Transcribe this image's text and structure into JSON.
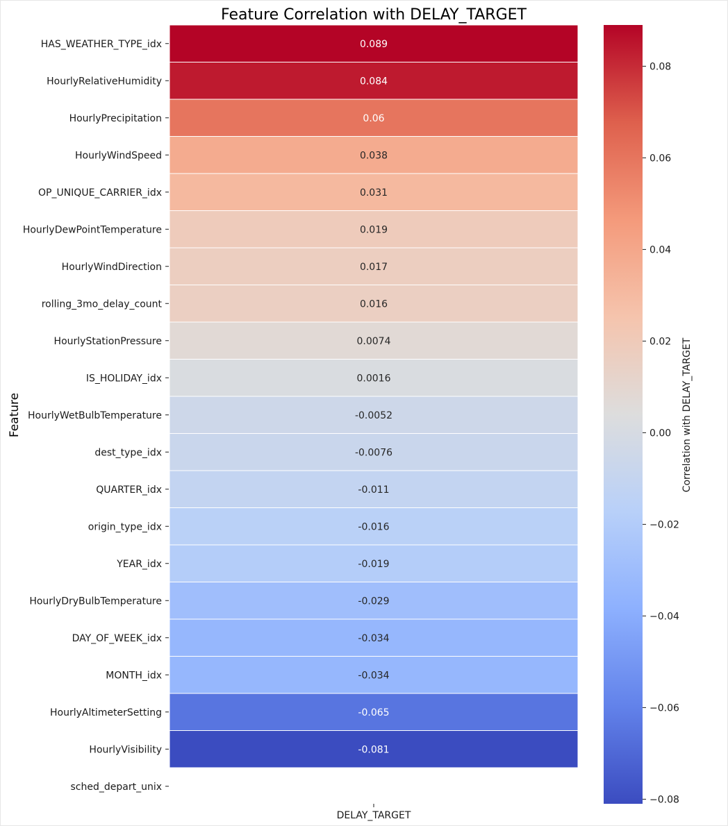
{
  "chart_data": {
    "type": "heatmap",
    "title": "Feature Correlation with DELAY_TARGET",
    "ylabel": "Feature",
    "xlabel": "",
    "columns": [
      "DELAY_TARGET"
    ],
    "rows": [
      {
        "label": "HAS_WEATHER_TYPE_idx",
        "value": 0.089,
        "text": "0.089"
      },
      {
        "label": "HourlyRelativeHumidity",
        "value": 0.084,
        "text": "0.084"
      },
      {
        "label": "HourlyPrecipitation",
        "value": 0.06,
        "text": "0.06"
      },
      {
        "label": "HourlyWindSpeed",
        "value": 0.038,
        "text": "0.038"
      },
      {
        "label": "OP_UNIQUE_CARRIER_idx",
        "value": 0.031,
        "text": "0.031"
      },
      {
        "label": "HourlyDewPointTemperature",
        "value": 0.019,
        "text": "0.019"
      },
      {
        "label": "HourlyWindDirection",
        "value": 0.017,
        "text": "0.017"
      },
      {
        "label": "rolling_3mo_delay_count",
        "value": 0.016,
        "text": "0.016"
      },
      {
        "label": "HourlyStationPressure",
        "value": 0.0074,
        "text": "0.0074"
      },
      {
        "label": "IS_HOLIDAY_idx",
        "value": 0.0016,
        "text": "0.0016"
      },
      {
        "label": "HourlyWetBulbTemperature",
        "value": -0.0052,
        "text": "-0.0052"
      },
      {
        "label": "dest_type_idx",
        "value": -0.0076,
        "text": "-0.0076"
      },
      {
        "label": "QUARTER_idx",
        "value": -0.011,
        "text": "-0.011"
      },
      {
        "label": "origin_type_idx",
        "value": -0.016,
        "text": "-0.016"
      },
      {
        "label": "YEAR_idx",
        "value": -0.019,
        "text": "-0.019"
      },
      {
        "label": "HourlyDryBulbTemperature",
        "value": -0.029,
        "text": "-0.029"
      },
      {
        "label": "DAY_OF_WEEK_idx",
        "value": -0.034,
        "text": "-0.034"
      },
      {
        "label": "MONTH_idx",
        "value": -0.034,
        "text": "-0.034"
      },
      {
        "label": "HourlyAltimeterSetting",
        "value": -0.065,
        "text": "-0.065"
      },
      {
        "label": "HourlyVisibility",
        "value": -0.081,
        "text": "-0.081"
      },
      {
        "label": "sched_depart_unix",
        "value": null,
        "text": ""
      }
    ],
    "colormap": "coolwarm",
    "colorbar": {
      "label": "Correlation with DELAY_TARGET",
      "range": [
        -0.081,
        0.089
      ],
      "ticks": [
        0.08,
        0.06,
        0.04,
        0.02,
        0.0,
        -0.02,
        -0.04,
        -0.06,
        -0.08
      ],
      "tick_labels": [
        "0.08",
        "0.06",
        "0.04",
        "0.02",
        "0.00",
        "−0.02",
        "−0.04",
        "−0.06",
        "−0.08"
      ]
    }
  }
}
